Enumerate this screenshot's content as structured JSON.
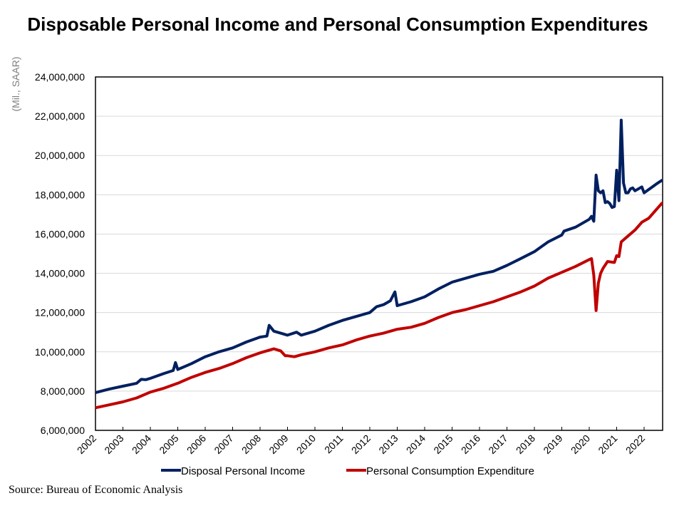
{
  "chart_data": {
    "type": "line",
    "title": "Disposable Personal Income and Personal Consumption Expenditures",
    "ylabel": "(Mil., SAAR)",
    "xlabel": "",
    "ylim": [
      6000000,
      24000000
    ],
    "yticks": [
      "6,000,000",
      "8,000,000",
      "10,000,000",
      "12,000,000",
      "14,000,000",
      "16,000,000",
      "18,000,000",
      "20,000,000",
      "22,000,000",
      "24,000,000"
    ],
    "xticks": [
      "2002",
      "2003",
      "2004",
      "2005",
      "2006",
      "2007",
      "2008",
      "2009",
      "2010",
      "2011",
      "2012",
      "2013",
      "2014",
      "2015",
      "2016",
      "2017",
      "2018",
      "2019",
      "2020",
      "2021",
      "2022"
    ],
    "xlim": [
      "2002-01",
      "2022-09"
    ],
    "grid": "horizontal",
    "legend": "bottom",
    "source": "Source: Bureau of Economic Analysis",
    "series": [
      {
        "name": "Disposal Personal Income",
        "color": "#002060",
        "points": [
          [
            "2002-01",
            7920000
          ],
          [
            "2002-07",
            8100000
          ],
          [
            "2003-01",
            8250000
          ],
          [
            "2003-07",
            8400000
          ],
          [
            "2003-09",
            8600000
          ],
          [
            "2003-11",
            8580000
          ],
          [
            "2004-01",
            8650000
          ],
          [
            "2004-07",
            8900000
          ],
          [
            "2004-11",
            9050000
          ],
          [
            "2004-12",
            9450000
          ],
          [
            "2005-01",
            9100000
          ],
          [
            "2005-07",
            9400000
          ],
          [
            "2006-01",
            9750000
          ],
          [
            "2006-07",
            10000000
          ],
          [
            "2007-01",
            10200000
          ],
          [
            "2007-07",
            10500000
          ],
          [
            "2008-01",
            10750000
          ],
          [
            "2008-04",
            10800000
          ],
          [
            "2008-05",
            11350000
          ],
          [
            "2008-07",
            11050000
          ],
          [
            "2008-10",
            10950000
          ],
          [
            "2009-01",
            10850000
          ],
          [
            "2009-05",
            11000000
          ],
          [
            "2009-07",
            10850000
          ],
          [
            "2010-01",
            11050000
          ],
          [
            "2010-07",
            11350000
          ],
          [
            "2011-01",
            11600000
          ],
          [
            "2011-07",
            11800000
          ],
          [
            "2012-01",
            12000000
          ],
          [
            "2012-04",
            12300000
          ],
          [
            "2012-07",
            12400000
          ],
          [
            "2012-10",
            12600000
          ],
          [
            "2012-12",
            13050000
          ],
          [
            "2013-01",
            12350000
          ],
          [
            "2013-07",
            12550000
          ],
          [
            "2014-01",
            12800000
          ],
          [
            "2014-07",
            13200000
          ],
          [
            "2015-01",
            13550000
          ],
          [
            "2015-07",
            13750000
          ],
          [
            "2016-01",
            13950000
          ],
          [
            "2016-07",
            14100000
          ],
          [
            "2017-01",
            14400000
          ],
          [
            "2017-07",
            14750000
          ],
          [
            "2018-01",
            15100000
          ],
          [
            "2018-07",
            15600000
          ],
          [
            "2019-01",
            15950000
          ],
          [
            "2019-02",
            16150000
          ],
          [
            "2019-07",
            16350000
          ],
          [
            "2020-01",
            16750000
          ],
          [
            "2020-02",
            16900000
          ],
          [
            "2020-03",
            16650000
          ],
          [
            "2020-04",
            19000000
          ],
          [
            "2020-05",
            18200000
          ],
          [
            "2020-06",
            18100000
          ],
          [
            "2020-07",
            18200000
          ],
          [
            "2020-08",
            17600000
          ],
          [
            "2020-09",
            17650000
          ],
          [
            "2020-10",
            17550000
          ],
          [
            "2020-11",
            17350000
          ],
          [
            "2020-12",
            17400000
          ],
          [
            "2021-01",
            19250000
          ],
          [
            "2021-02",
            17700000
          ],
          [
            "2021-03",
            21800000
          ],
          [
            "2021-04",
            18600000
          ],
          [
            "2021-05",
            18100000
          ],
          [
            "2021-06",
            18100000
          ],
          [
            "2021-07",
            18300000
          ],
          [
            "2021-08",
            18350000
          ],
          [
            "2021-09",
            18200000
          ],
          [
            "2021-12",
            18400000
          ],
          [
            "2022-01",
            18100000
          ],
          [
            "2022-04",
            18350000
          ],
          [
            "2022-07",
            18600000
          ],
          [
            "2022-09",
            18750000
          ]
        ]
      },
      {
        "name": "Personal Consumption Expenditure",
        "color": "#C00000",
        "points": [
          [
            "2002-01",
            7150000
          ],
          [
            "2002-07",
            7300000
          ],
          [
            "2003-01",
            7450000
          ],
          [
            "2003-07",
            7650000
          ],
          [
            "2004-01",
            7950000
          ],
          [
            "2004-07",
            8150000
          ],
          [
            "2005-01",
            8400000
          ],
          [
            "2005-07",
            8700000
          ],
          [
            "2006-01",
            8950000
          ],
          [
            "2006-07",
            9150000
          ],
          [
            "2007-01",
            9400000
          ],
          [
            "2007-07",
            9700000
          ],
          [
            "2008-01",
            9950000
          ],
          [
            "2008-07",
            10150000
          ],
          [
            "2008-10",
            10050000
          ],
          [
            "2008-12",
            9800000
          ],
          [
            "2009-01",
            9800000
          ],
          [
            "2009-04",
            9750000
          ],
          [
            "2009-07",
            9850000
          ],
          [
            "2010-01",
            10000000
          ],
          [
            "2010-07",
            10200000
          ],
          [
            "2011-01",
            10350000
          ],
          [
            "2011-07",
            10600000
          ],
          [
            "2012-01",
            10800000
          ],
          [
            "2012-07",
            10950000
          ],
          [
            "2013-01",
            11150000
          ],
          [
            "2013-07",
            11250000
          ],
          [
            "2014-01",
            11450000
          ],
          [
            "2014-07",
            11750000
          ],
          [
            "2015-01",
            12000000
          ],
          [
            "2015-07",
            12150000
          ],
          [
            "2016-01",
            12350000
          ],
          [
            "2016-07",
            12550000
          ],
          [
            "2017-01",
            12800000
          ],
          [
            "2017-07",
            13050000
          ],
          [
            "2018-01",
            13350000
          ],
          [
            "2018-07",
            13750000
          ],
          [
            "2019-01",
            14050000
          ],
          [
            "2019-07",
            14350000
          ],
          [
            "2020-01",
            14700000
          ],
          [
            "2020-02",
            14750000
          ],
          [
            "2020-03",
            13900000
          ],
          [
            "2020-04",
            12100000
          ],
          [
            "2020-05",
            13500000
          ],
          [
            "2020-06",
            14000000
          ],
          [
            "2020-07",
            14250000
          ],
          [
            "2020-09",
            14600000
          ],
          [
            "2020-12",
            14550000
          ],
          [
            "2021-01",
            14900000
          ],
          [
            "2021-02",
            14850000
          ],
          [
            "2021-03",
            15600000
          ],
          [
            "2021-06",
            15900000
          ],
          [
            "2021-09",
            16200000
          ],
          [
            "2021-12",
            16600000
          ],
          [
            "2022-03",
            16800000
          ],
          [
            "2022-06",
            17200000
          ],
          [
            "2022-09",
            17600000
          ]
        ]
      }
    ]
  }
}
